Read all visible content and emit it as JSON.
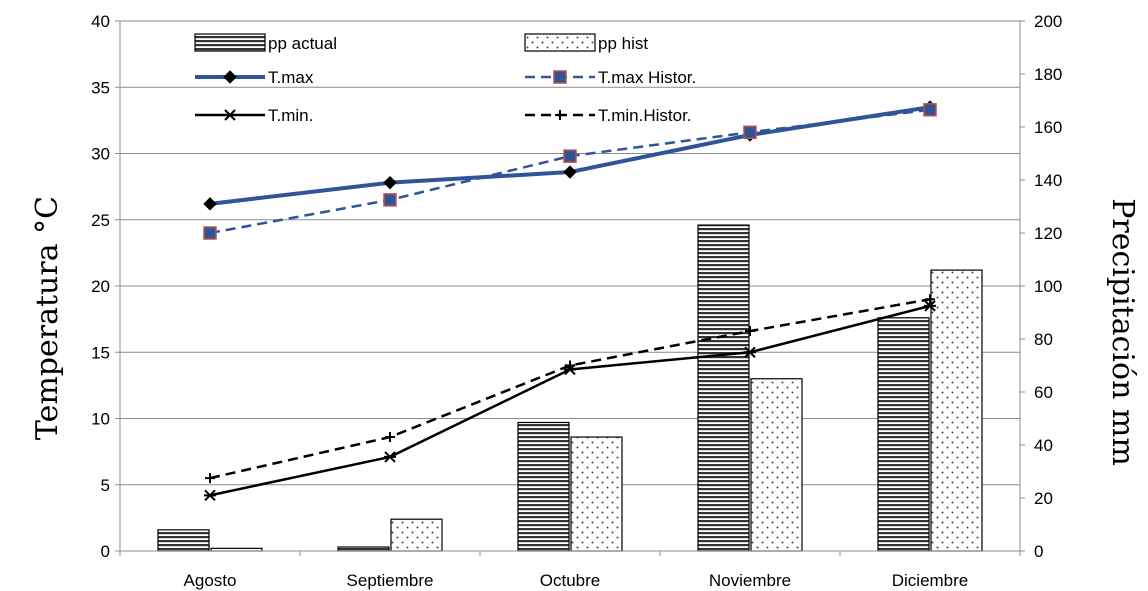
{
  "chart_data": {
    "type": "bar",
    "title": "",
    "categories": [
      "Agosto",
      "Septiembre",
      "Octubre",
      "Noviembre",
      "Diciembre"
    ],
    "y_left": {
      "label": "Temperatura °C",
      "min": 0,
      "max": 40,
      "step": 5
    },
    "y_right": {
      "label": "Precipitación mm",
      "min": 0,
      "max": 200,
      "step": 20
    },
    "grid": true,
    "legend": "top-inside",
    "bar_series": [
      {
        "name": "pp actual",
        "axis": "right",
        "pattern": "horizontal-lines",
        "values": [
          8,
          1.5,
          48.5,
          123,
          88
        ]
      },
      {
        "name": "pp hist",
        "axis": "right",
        "pattern": "dots",
        "values": [
          1,
          12,
          43,
          65,
          106
        ]
      }
    ],
    "line_series": [
      {
        "name": "T.max",
        "axis": "left",
        "color": "#2E5597",
        "dash": "solid",
        "marker": "diamond",
        "values": [
          26.2,
          27.8,
          28.6,
          31.4,
          33.5
        ]
      },
      {
        "name": "T.max Histor.",
        "axis": "left",
        "color": "#2E5597",
        "dash": "dashed",
        "marker": "square",
        "values": [
          24.0,
          26.5,
          29.8,
          31.6,
          33.3
        ]
      },
      {
        "name": "T.min.",
        "axis": "left",
        "color": "#000000",
        "dash": "solid",
        "marker": "star",
        "values": [
          4.2,
          7.1,
          13.7,
          15.0,
          18.5
        ]
      },
      {
        "name": "T.min.Histor.",
        "axis": "left",
        "color": "#000000",
        "dash": "dashed",
        "marker": "plus",
        "values": [
          5.5,
          8.6,
          14.0,
          16.6,
          19.0
        ]
      }
    ]
  }
}
